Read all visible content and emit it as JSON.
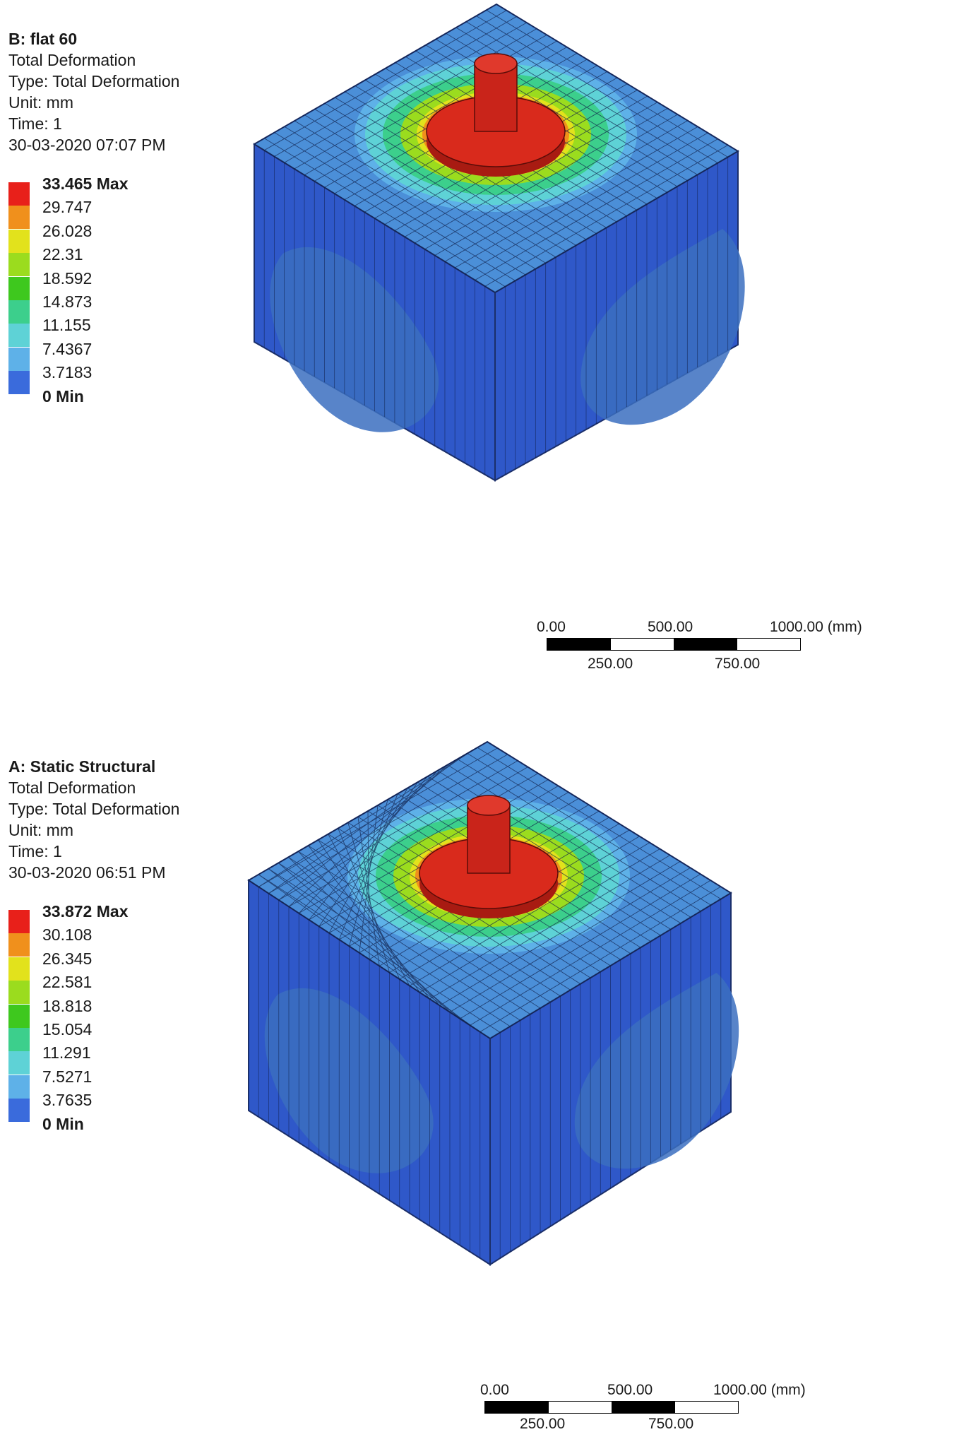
{
  "panels": [
    {
      "id": "B",
      "title": "B: flat 60",
      "result_name": "Total Deformation",
      "type_line": "Type: Total Deformation",
      "unit_line": "Unit: mm",
      "time_line": "Time: 1",
      "timestamp": "30-03-2020 07:07 PM",
      "legend": [
        "33.465 Max",
        "29.747",
        "26.028",
        "22.31",
        "18.592",
        "14.873",
        "11.155",
        "7.4367",
        "3.7183",
        "0 Min"
      ],
      "mesh_type": "hexahedral"
    },
    {
      "id": "A",
      "title": "A: Static Structural",
      "result_name": "Total Deformation",
      "type_line": "Type: Total Deformation",
      "unit_line": "Unit: mm",
      "time_line": "Time: 1",
      "timestamp": "30-03-2020 06:51 PM",
      "legend": [
        "33.872 Max",
        "30.108",
        "26.345",
        "22.581",
        "18.818",
        "15.054",
        "11.291",
        "7.5271",
        "3.7635",
        "0 Min"
      ],
      "mesh_type": "tetrahedral"
    }
  ],
  "legend_colors": [
    "#e8201a",
    "#f0901c",
    "#e2e21c",
    "#9bdc1e",
    "#3ec81e",
    "#3ccf8c",
    "#5ed2d6",
    "#5eb1e8",
    "#3a6bdc"
  ],
  "scale_bar": {
    "top_labels": [
      "0.00",
      "500.00",
      "1000.00 (mm)"
    ],
    "bottom_labels": [
      "250.00",
      "750.00"
    ]
  },
  "colors": {
    "top_face": "#4b8fd8",
    "front_face": "#2f58c9",
    "right_face": "#2f58c9",
    "side_contour": "#3b6fbf",
    "max_red": "#d92a1c"
  }
}
